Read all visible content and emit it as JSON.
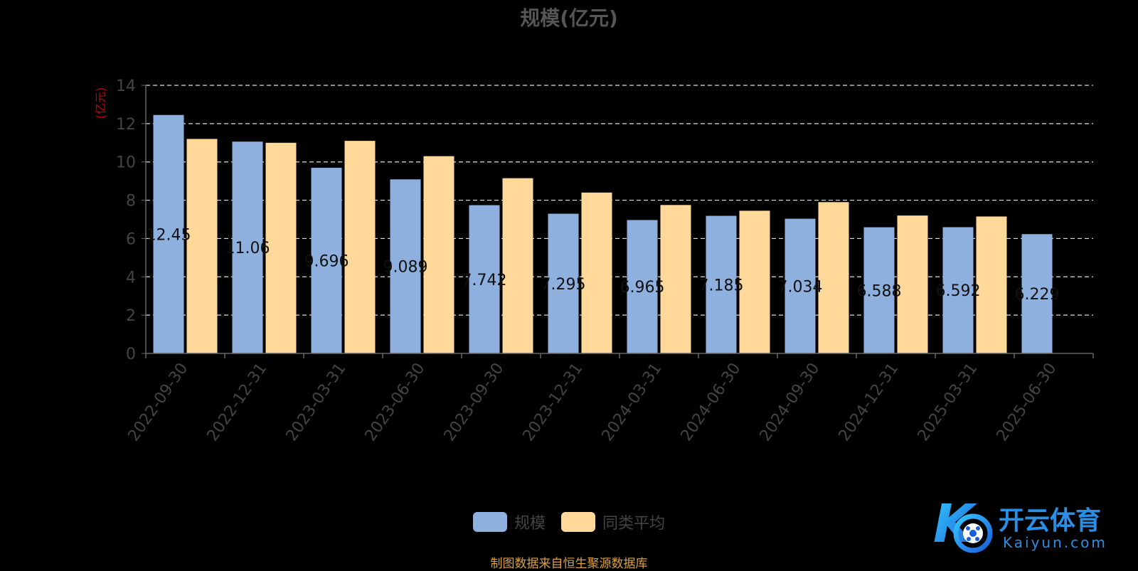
{
  "chart_data": {
    "type": "bar",
    "title": "规模(亿元)",
    "ylabel": "(亿元)",
    "ylim": [
      0,
      14
    ],
    "yticks": [
      0,
      2,
      4,
      6,
      8,
      10,
      12,
      14
    ],
    "grid": true,
    "legend_position": "bottom-center",
    "categories": [
      "2022-09-30",
      "2022-12-31",
      "2023-03-31",
      "2023-06-30",
      "2023-09-30",
      "2023-12-31",
      "2024-03-31",
      "2024-06-30",
      "2024-09-30",
      "2024-12-31",
      "2025-03-31",
      "2025-06-30"
    ],
    "series": [
      {
        "name": "规模",
        "color": "#8eb0de",
        "values": [
          12.45,
          11.06,
          9.696,
          9.089,
          7.742,
          7.295,
          6.965,
          7.185,
          7.034,
          6.588,
          6.592,
          6.229
        ],
        "labels": [
          "12.45",
          "11.06",
          "9.696",
          "9.089",
          "7.742",
          "7.295",
          "6.965",
          "7.185",
          "7.034",
          "6.588",
          "6.592",
          "6.229"
        ]
      },
      {
        "name": "同类平均",
        "color": "#ffd89a",
        "values": [
          11.2,
          11.0,
          11.1,
          10.3,
          9.15,
          8.4,
          7.75,
          7.45,
          7.9,
          7.2,
          7.15,
          null
        ]
      }
    ]
  },
  "source": "制图数据来自恒生聚源数据库",
  "watermark": {
    "brand_text": "开云体育",
    "brand_url_text": "Kaiyun.com",
    "logo_letter": "K"
  }
}
